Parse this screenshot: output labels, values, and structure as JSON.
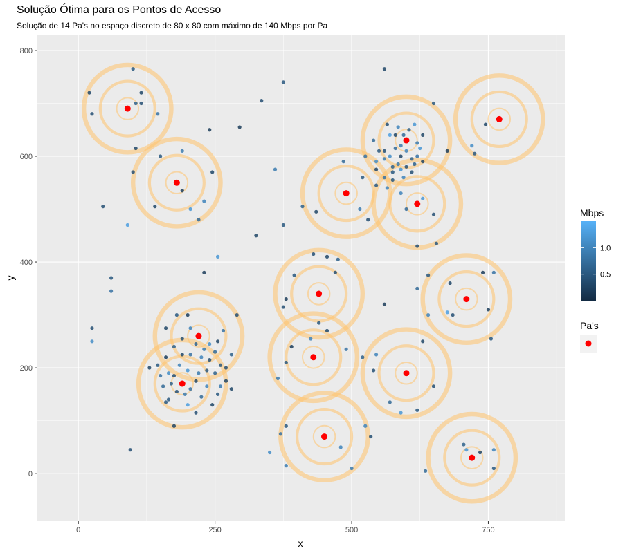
{
  "chart_data": {
    "type": "scatter",
    "title": "Solução Ótima para os Pontos de Acesso",
    "subtitle": "Solução de 14 Pa's no espaço discreto de 80 x 80 com máximo de 140 Mbps por Pa",
    "xlabel": "x",
    "ylabel": "y",
    "xlim": [
      -75,
      890
    ],
    "ylim": [
      -90,
      830
    ],
    "xticks": [
      0,
      250,
      500,
      750
    ],
    "yticks": [
      0,
      200,
      400,
      600,
      800
    ],
    "grid": true,
    "legend_position": "right",
    "color_legend": {
      "title": "Mbps",
      "ticks": [
        0.5,
        1.0
      ],
      "tick_labels": [
        "0.5",
        "1.0"
      ],
      "range": [
        0.0,
        1.5
      ],
      "low_color": "#132B43",
      "high_color": "#56B1F7"
    },
    "pa_legend": {
      "title": "Pa's",
      "color": "#FF0000"
    },
    "access_points": [
      {
        "x": 90,
        "y": 690
      },
      {
        "x": 180,
        "y": 550
      },
      {
        "x": 490,
        "y": 530
      },
      {
        "x": 600,
        "y": 630
      },
      {
        "x": 620,
        "y": 510
      },
      {
        "x": 770,
        "y": 670
      },
      {
        "x": 440,
        "y": 340
      },
      {
        "x": 710,
        "y": 330
      },
      {
        "x": 220,
        "y": 260
      },
      {
        "x": 190,
        "y": 170
      },
      {
        "x": 430,
        "y": 220
      },
      {
        "x": 600,
        "y": 190
      },
      {
        "x": 450,
        "y": 70
      },
      {
        "x": 720,
        "y": 30
      }
    ],
    "coverage_ring_radii": [
      20,
      50,
      80
    ],
    "users": [
      [
        20,
        720,
        0.3
      ],
      [
        25,
        680,
        0.4
      ],
      [
        100,
        765,
        0.5
      ],
      [
        115,
        720,
        0.3
      ],
      [
        105,
        700,
        0.6
      ],
      [
        115,
        700,
        0.4
      ],
      [
        145,
        680,
        0.8
      ],
      [
        105,
        615,
        0.3
      ],
      [
        100,
        570,
        0.4
      ],
      [
        150,
        600,
        0.5
      ],
      [
        190,
        610,
        0.9
      ],
      [
        240,
        650,
        0.2
      ],
      [
        245,
        570,
        0.3
      ],
      [
        190,
        535,
        0.2
      ],
      [
        230,
        515,
        1.0
      ],
      [
        205,
        500,
        1.2
      ],
      [
        140,
        505,
        0.3
      ],
      [
        220,
        480,
        0.7
      ],
      [
        45,
        505,
        0.4
      ],
      [
        90,
        470,
        1.3
      ],
      [
        295,
        655,
        0.2
      ],
      [
        335,
        705,
        0.4
      ],
      [
        375,
        740,
        0.5
      ],
      [
        360,
        575,
        0.9
      ],
      [
        325,
        450,
        0.3
      ],
      [
        375,
        470,
        0.5
      ],
      [
        410,
        505,
        0.6
      ],
      [
        435,
        495,
        0.3
      ],
      [
        485,
        590,
        0.7
      ],
      [
        520,
        560,
        0.5
      ],
      [
        515,
        500,
        0.9
      ],
      [
        530,
        480,
        0.4
      ],
      [
        560,
        765,
        0.3
      ],
      [
        525,
        600,
        0.8
      ],
      [
        545,
        590,
        1.1
      ],
      [
        570,
        640,
        1.3
      ],
      [
        575,
        580,
        0.6
      ],
      [
        590,
        620,
        0.9
      ],
      [
        615,
        660,
        1.2
      ],
      [
        630,
        640,
        0.3
      ],
      [
        650,
        700,
        0.5
      ],
      [
        590,
        530,
        1.0
      ],
      [
        600,
        500,
        0.7
      ],
      [
        630,
        520,
        1.2
      ],
      [
        650,
        490,
        0.4
      ],
      [
        675,
        610,
        0.2
      ],
      [
        720,
        620,
        1.1
      ],
      [
        725,
        605,
        0.5
      ],
      [
        745,
        660,
        0.3
      ],
      [
        620,
        430,
        0.4
      ],
      [
        655,
        435,
        0.5
      ],
      [
        430,
        415,
        0.4
      ],
      [
        455,
        410,
        0.3
      ],
      [
        475,
        405,
        0.6
      ],
      [
        470,
        380,
        0.4
      ],
      [
        395,
        375,
        0.5
      ],
      [
        380,
        330,
        0.2
      ],
      [
        375,
        315,
        0.4
      ],
      [
        425,
        255,
        1.0
      ],
      [
        440,
        285,
        0.5
      ],
      [
        455,
        270,
        0.3
      ],
      [
        490,
        235,
        0.8
      ],
      [
        380,
        210,
        0.5
      ],
      [
        365,
        180,
        0.9
      ],
      [
        390,
        240,
        0.2
      ],
      [
        560,
        320,
        0.2
      ],
      [
        620,
        350,
        0.7
      ],
      [
        640,
        375,
        0.5
      ],
      [
        680,
        360,
        0.3
      ],
      [
        685,
        300,
        0.4
      ],
      [
        640,
        300,
        1.0
      ],
      [
        740,
        380,
        0.2
      ],
      [
        760,
        380,
        0.8
      ],
      [
        750,
        310,
        0.2
      ],
      [
        755,
        255,
        0.5
      ],
      [
        675,
        305,
        1.3
      ],
      [
        545,
        225,
        1.0
      ],
      [
        540,
        195,
        0.4
      ],
      [
        570,
        135,
        0.7
      ],
      [
        590,
        115,
        1.2
      ],
      [
        620,
        120,
        0.5
      ],
      [
        650,
        165,
        0.4
      ],
      [
        630,
        250,
        0.3
      ],
      [
        520,
        220,
        0.6
      ],
      [
        370,
        75,
        0.8
      ],
      [
        380,
        90,
        0.5
      ],
      [
        380,
        15,
        0.9
      ],
      [
        350,
        40,
        1.1
      ],
      [
        480,
        50,
        1.0
      ],
      [
        500,
        10,
        0.9
      ],
      [
        525,
        90,
        1.0
      ],
      [
        535,
        70,
        0.4
      ],
      [
        635,
        5,
        0.7
      ],
      [
        705,
        55,
        0.6
      ],
      [
        710,
        45,
        1.2
      ],
      [
        735,
        40,
        0.3
      ],
      [
        760,
        10,
        0.5
      ],
      [
        760,
        45,
        1.0
      ],
      [
        25,
        275,
        0.4
      ],
      [
        25,
        250,
        1.1
      ],
      [
        60,
        370,
        0.5
      ],
      [
        60,
        345,
        0.8
      ],
      [
        95,
        45,
        0.4
      ],
      [
        160,
        135,
        0.5
      ],
      [
        175,
        90,
        0.3
      ],
      [
        230,
        380,
        0.2
      ],
      [
        255,
        410,
        1.2
      ],
      [
        290,
        300,
        0.4
      ],
      [
        280,
        160,
        0.3
      ],
      [
        265,
        270,
        0.8
      ],
      [
        160,
        275,
        0.3
      ],
      [
        180,
        300,
        0.5
      ],
      [
        200,
        300,
        0.2
      ],
      [
        205,
        275,
        1.0
      ],
      [
        190,
        255,
        0.4
      ],
      [
        215,
        245,
        0.6
      ],
      [
        230,
        235,
        0.9
      ],
      [
        240,
        245,
        1.1
      ],
      [
        255,
        250,
        0.3
      ],
      [
        205,
        225,
        0.8
      ],
      [
        225,
        220,
        1.0
      ],
      [
        240,
        215,
        0.4
      ],
      [
        250,
        230,
        0.7
      ],
      [
        260,
        205,
        0.5
      ],
      [
        200,
        195,
        1.2
      ],
      [
        220,
        190,
        0.9
      ],
      [
        250,
        190,
        0.6
      ],
      [
        270,
        200,
        0.4
      ],
      [
        215,
        175,
        0.3
      ],
      [
        235,
        165,
        1.0
      ],
      [
        255,
        150,
        0.5
      ],
      [
        245,
        130,
        0.3
      ],
      [
        175,
        240,
        0.6
      ],
      [
        160,
        220,
        0.2
      ],
      [
        145,
        205,
        0.5
      ],
      [
        130,
        200,
        0.3
      ],
      [
        150,
        185,
        0.8
      ],
      [
        165,
        190,
        1.1
      ],
      [
        170,
        170,
        0.6
      ],
      [
        180,
        155,
        0.4
      ],
      [
        195,
        150,
        0.9
      ],
      [
        165,
        140,
        0.5
      ],
      [
        200,
        130,
        1.3
      ],
      [
        215,
        115,
        0.4
      ],
      [
        225,
        145,
        0.7
      ],
      [
        270,
        175,
        0.3
      ],
      [
        185,
        205,
        1.0
      ],
      [
        175,
        185,
        0.4
      ],
      [
        205,
        160,
        0.8
      ],
      [
        235,
        195,
        0.5
      ],
      [
        155,
        165,
        0.7
      ],
      [
        190,
        225,
        0.3
      ],
      [
        260,
        165,
        0.9
      ],
      [
        280,
        225,
        0.6
      ],
      [
        560,
        610,
        0.4
      ],
      [
        570,
        600,
        1.1
      ],
      [
        580,
        615,
        0.7
      ],
      [
        590,
        600,
        0.3
      ],
      [
        600,
        610,
        1.0
      ],
      [
        610,
        595,
        0.6
      ],
      [
        585,
        585,
        0.9
      ],
      [
        575,
        570,
        0.5
      ],
      [
        590,
        575,
        1.2
      ],
      [
        600,
        580,
        0.4
      ],
      [
        620,
        600,
        0.8
      ],
      [
        615,
        585,
        0.6
      ],
      [
        630,
        590,
        0.3
      ],
      [
        560,
        595,
        0.9
      ],
      [
        550,
        610,
        0.5
      ],
      [
        545,
        575,
        0.3
      ],
      [
        560,
        560,
        0.8
      ],
      [
        575,
        555,
        0.5
      ],
      [
        595,
        560,
        1.0
      ],
      [
        610,
        570,
        0.4
      ],
      [
        620,
        625,
        0.9
      ],
      [
        605,
        650,
        0.6
      ],
      [
        585,
        655,
        1.0
      ],
      [
        565,
        660,
        0.4
      ],
      [
        595,
        640,
        0.7
      ],
      [
        580,
        640,
        0.3
      ],
      [
        625,
        615,
        1.2
      ],
      [
        545,
        545,
        0.5
      ],
      [
        565,
        540,
        1.0
      ],
      [
        540,
        630,
        0.7
      ]
    ]
  }
}
